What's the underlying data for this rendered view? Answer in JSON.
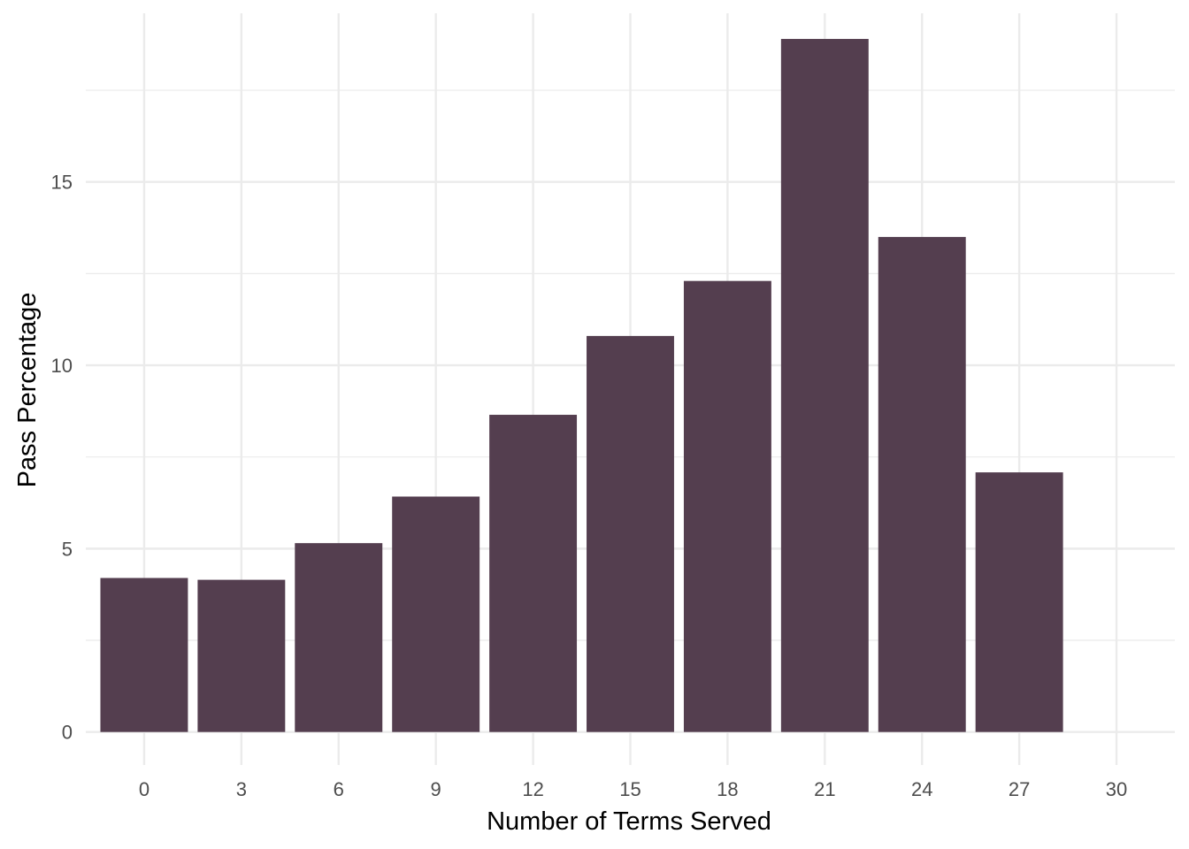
{
  "chart_data": {
    "type": "bar",
    "title": "",
    "xlabel": "Number of Terms Served",
    "ylabel": "Pass Percentage",
    "x": [
      0,
      3,
      6,
      9,
      12,
      15,
      18,
      21,
      24,
      27
    ],
    "values": [
      4.2,
      4.15,
      5.15,
      6.42,
      8.65,
      10.8,
      12.3,
      18.9,
      13.5,
      7.08
    ],
    "bin_width": 3,
    "xlim": [
      -1.8,
      31.8
    ],
    "ylim": [
      -0.9,
      19.6
    ],
    "x_ticks": [
      0,
      3,
      6,
      9,
      12,
      15,
      18,
      21,
      24,
      27,
      30
    ],
    "y_ticks": [
      0,
      5,
      10,
      15
    ],
    "grid": true,
    "bar_color": "#543e4f",
    "grid_color": "#ebebeb"
  }
}
